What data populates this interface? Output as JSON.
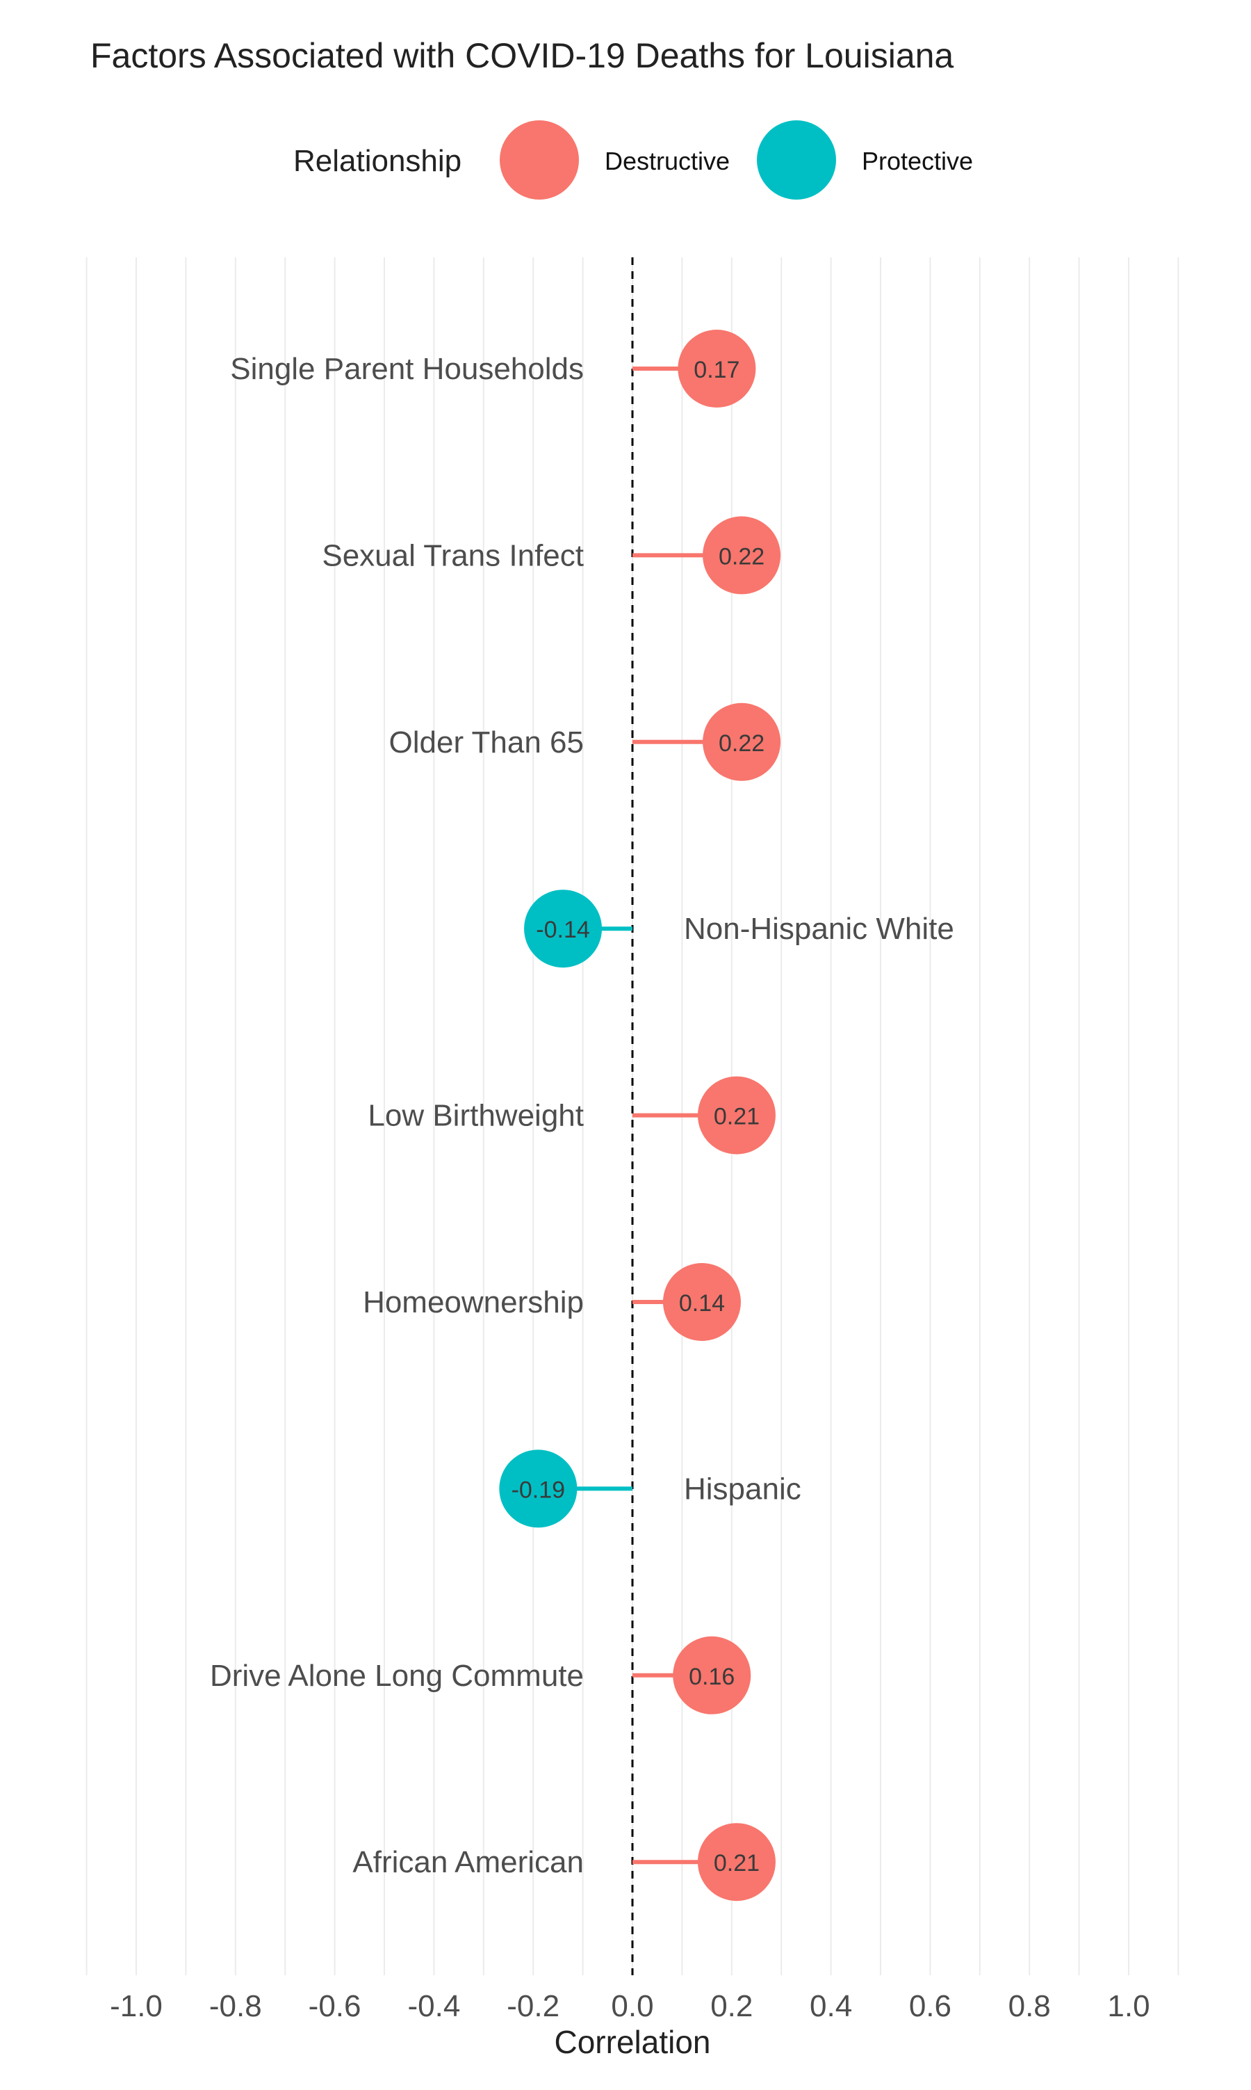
{
  "chart_data": {
    "type": "lollipop",
    "title": "Factors Associated with COVID-19 Deaths for Louisiana",
    "xlabel": "Correlation",
    "ylabel": "",
    "xlim": [
      -1.1,
      1.1
    ],
    "x_ticks": [
      -1.0,
      -0.8,
      -0.6,
      -0.4,
      -0.2,
      0.0,
      0.2,
      0.4,
      0.6,
      0.8,
      1.0
    ],
    "x_tick_labels": [
      "-1.0",
      "-0.8",
      "-0.6",
      "-0.4",
      "-0.2",
      "0.0",
      "0.2",
      "0.4",
      "0.6",
      "0.8",
      "1.0"
    ],
    "reference_line": 0,
    "grid": "vertical",
    "legend": {
      "title": "Relationship",
      "placement": "top",
      "entries": [
        {
          "label": "Destructive",
          "color": "#F8766D"
        },
        {
          "label": "Protective",
          "color": "#00BFC4"
        }
      ]
    },
    "points": [
      {
        "category": "Single Parent Households",
        "value": 0.17,
        "label": "0.17",
        "relationship": "Destructive"
      },
      {
        "category": "Sexual Trans Infect",
        "value": 0.22,
        "label": "0.22",
        "relationship": "Destructive"
      },
      {
        "category": "Older Than 65",
        "value": 0.22,
        "label": "0.22",
        "relationship": "Destructive"
      },
      {
        "category": "Non-Hispanic White",
        "value": -0.14,
        "label": "-0.14",
        "relationship": "Protective"
      },
      {
        "category": "Low Birthweight",
        "value": 0.21,
        "label": "0.21",
        "relationship": "Destructive"
      },
      {
        "category": "Homeownership",
        "value": 0.14,
        "label": "0.14",
        "relationship": "Destructive"
      },
      {
        "category": "Hispanic",
        "value": -0.19,
        "label": "-0.19",
        "relationship": "Protective"
      },
      {
        "category": "Drive Alone Long Commute",
        "value": 0.16,
        "label": "0.16",
        "relationship": "Destructive"
      },
      {
        "category": "African American",
        "value": 0.21,
        "label": "0.21",
        "relationship": "Destructive"
      }
    ]
  }
}
